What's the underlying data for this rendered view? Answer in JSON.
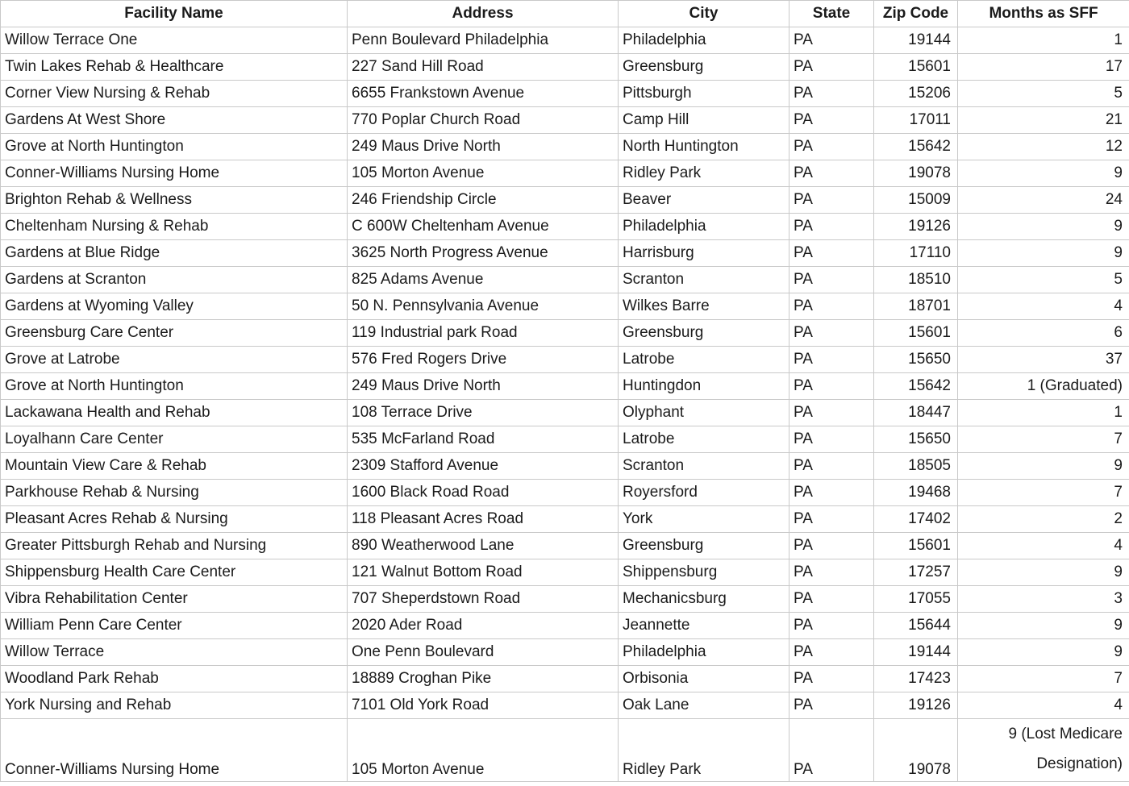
{
  "colors": {
    "background": "#ffffff",
    "grid_line": "#c9c9c9",
    "text": "#1b1b1b"
  },
  "table": {
    "columns": [
      {
        "key": "facility-name",
        "label": "Facility Name",
        "align": "left"
      },
      {
        "key": "address",
        "label": "Address",
        "align": "left"
      },
      {
        "key": "city",
        "label": "City",
        "align": "left"
      },
      {
        "key": "state",
        "label": "State",
        "align": "left"
      },
      {
        "key": "zip-code",
        "label": "Zip Code",
        "align": "right"
      },
      {
        "key": "months-as-sff",
        "label": "Months as SFF",
        "align": "right"
      }
    ],
    "rows": [
      [
        "Willow Terrace One",
        "Penn Boulevard Philadelphia",
        "Philadelphia",
        "PA",
        "19144",
        "1"
      ],
      [
        "Twin Lakes Rehab  & Healthcare",
        "227 Sand Hill Road",
        "Greensburg",
        "PA",
        "15601",
        "17"
      ],
      [
        "Corner View Nursing & Rehab",
        "6655 Frankstown Avenue",
        "Pittsburgh",
        "PA",
        "15206",
        "5"
      ],
      [
        "Gardens At West Shore",
        "770 Poplar Church Road",
        "Camp Hill",
        "PA",
        "17011",
        "21"
      ],
      [
        "Grove at North Huntington",
        "249 Maus Drive North",
        "North Huntington",
        "PA",
        "15642",
        "12"
      ],
      [
        "Conner-Williams Nursing Home",
        "105 Morton Avenue",
        "Ridley Park",
        "PA",
        "19078",
        "9"
      ],
      [
        "Brighton Rehab & Wellness",
        "246 Friendship Circle",
        "Beaver",
        "PA",
        "15009",
        "24"
      ],
      [
        "Cheltenham Nursing & Rehab",
        "C 600W Cheltenham Avenue",
        "Philadelphia",
        "PA",
        "19126",
        "9"
      ],
      [
        "Gardens at Blue Ridge",
        "3625 North Progress Avenue",
        "Harrisburg",
        "PA",
        "17110",
        "9"
      ],
      [
        "Gardens at Scranton",
        "825 Adams Avenue",
        "Scranton",
        "PA",
        "18510",
        "5"
      ],
      [
        "Gardens at Wyoming Valley",
        "50 N. Pennsylvania Avenue",
        "Wilkes Barre",
        "PA",
        "18701",
        "4"
      ],
      [
        "Greensburg Care Center",
        "119 Industrial park Road",
        "Greensburg",
        "PA",
        "15601",
        "6"
      ],
      [
        "Grove at Latrobe",
        "576 Fred Rogers Drive",
        "Latrobe",
        "PA",
        "15650",
        "37"
      ],
      [
        "Grove at North Huntington",
        "249 Maus Drive North",
        "Huntingdon",
        "PA",
        "15642",
        "1  (Graduated)"
      ],
      [
        "Lackawana Health and Rehab",
        "108 Terrace Drive",
        "Olyphant",
        "PA",
        "18447",
        "1"
      ],
      [
        "Loyalhann Care Center",
        "535 McFarland Road",
        "Latrobe",
        "PA",
        "15650",
        "7"
      ],
      [
        "Mountain View Care & Rehab",
        "2309 Stafford Avenue",
        "Scranton",
        "PA",
        "18505",
        "9"
      ],
      [
        "Parkhouse Rehab & Nursing",
        "1600 Black Road Road",
        "Royersford",
        "PA",
        "19468",
        "7"
      ],
      [
        "Pleasant Acres Rehab & Nursing",
        "118 Pleasant Acres Road",
        "York",
        "PA",
        "17402",
        "2"
      ],
      [
        "Greater Pittsburgh Rehab and Nursing",
        "890 Weatherwood Lane",
        "Greensburg",
        "PA",
        "15601",
        "4"
      ],
      [
        "Shippensburg Health Care Center",
        "121 Walnut Bottom Road",
        "Shippensburg",
        "PA",
        "17257",
        "9"
      ],
      [
        "Vibra Rehabilitation Center",
        "707 Sheperdstown Road",
        "Mechanicsburg",
        "PA",
        "17055",
        "3"
      ],
      [
        "William Penn Care Center",
        "2020 Ader Road",
        "Jeannette",
        "PA",
        "15644",
        "9"
      ],
      [
        "Willow Terrace",
        "One Penn Boulevard",
        "Philadelphia",
        "PA",
        "19144",
        "9"
      ],
      [
        "Woodland Park Rehab",
        "18889 Croghan Pike",
        "Orbisonia",
        "PA",
        "17423",
        "7"
      ],
      [
        "York Nursing and Rehab",
        "7101 Old York Road",
        "Oak Lane",
        "PA",
        "19126",
        "4"
      ],
      [
        "Conner-Williams Nursing Home",
        "105 Morton Avenue",
        "Ridley Park",
        "PA",
        "19078",
        "9 (Lost Medicare Designation)"
      ]
    ]
  }
}
